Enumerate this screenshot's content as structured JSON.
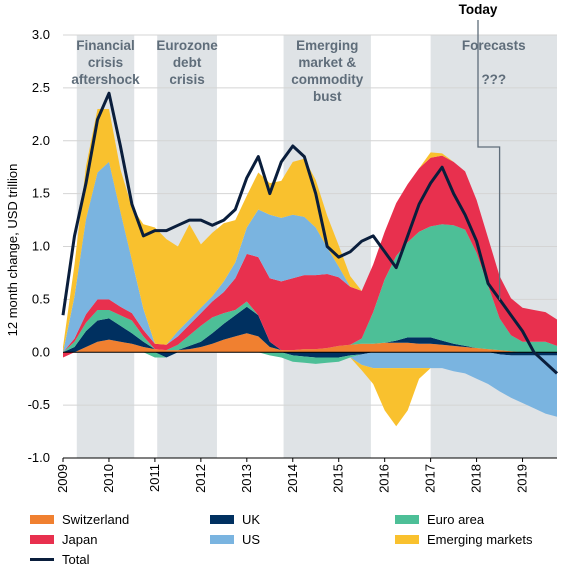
{
  "chart_data": {
    "type": "area",
    "ylabel": "12 month change, USD trillion",
    "ylim": [
      -1.0,
      3.0
    ],
    "yticks": [
      "3.0",
      "2.5",
      "2.0",
      "1.5",
      "1.0",
      "0.5",
      "0.0",
      "-0.5",
      "-1.0"
    ],
    "xlim": [
      2009.0,
      2019.75
    ],
    "xticks": [
      "2009",
      "2010",
      "2011",
      "2012",
      "2013",
      "2014",
      "2015",
      "2016",
      "2017",
      "2018",
      "2019"
    ],
    "grid": "horizontal",
    "legend_position": "bottom",
    "annotation_today": "Today",
    "today_x": 2018.5,
    "shaded_periods": [
      {
        "label": "Financial crisis aftershock",
        "lines": [
          "Financial",
          "crisis",
          "aftershock"
        ],
        "start": 2009.3,
        "end": 2010.55
      },
      {
        "label": "Eurozone debt crisis",
        "lines": [
          "Eurozone",
          "debt",
          "crisis"
        ],
        "start": 2011.05,
        "end": 2012.35
      },
      {
        "label": "Emerging market & commodity bust",
        "lines": [
          "Emerging",
          "market &",
          "commodity",
          "bust"
        ],
        "start": 2013.8,
        "end": 2015.7
      },
      {
        "label": "Forecasts ???",
        "lines": [
          "Forecasts",
          "",
          "???"
        ],
        "start": 2017.0,
        "end": 2019.75
      }
    ],
    "x": [
      2009.0,
      2009.25,
      2009.5,
      2009.75,
      2010.0,
      2010.25,
      2010.5,
      2010.75,
      2011.0,
      2011.25,
      2011.5,
      2011.75,
      2012.0,
      2012.25,
      2012.5,
      2012.75,
      2013.0,
      2013.25,
      2013.5,
      2013.75,
      2014.0,
      2014.25,
      2014.5,
      2014.75,
      2015.0,
      2015.25,
      2015.5,
      2015.75,
      2016.0,
      2016.25,
      2016.5,
      2016.75,
      2017.0,
      2017.25,
      2017.5,
      2017.75,
      2018.0,
      2018.25,
      2018.5,
      2018.75,
      2019.0,
      2019.25,
      2019.5,
      2019.75
    ],
    "series": [
      {
        "name": "Switzerland",
        "color": "#f08030",
        "values": [
          0.0,
          0.0,
          0.05,
          0.1,
          0.12,
          0.1,
          0.08,
          0.05,
          0.03,
          0.02,
          0.02,
          0.03,
          0.05,
          0.08,
          0.12,
          0.15,
          0.18,
          0.15,
          0.05,
          0.02,
          0.02,
          0.03,
          0.03,
          0.04,
          0.06,
          0.07,
          0.08,
          0.08,
          0.09,
          0.09,
          0.09,
          0.08,
          0.08,
          0.07,
          0.06,
          0.05,
          0.04,
          0.03,
          0.02,
          0.01,
          0.0,
          0.0,
          0.0,
          0.0
        ]
      },
      {
        "name": "UK",
        "color": "#003060",
        "values": [
          0.0,
          0.05,
          0.15,
          0.2,
          0.2,
          0.15,
          0.1,
          0.05,
          0.0,
          -0.05,
          0.0,
          0.03,
          0.05,
          0.1,
          0.15,
          0.2,
          0.25,
          0.2,
          0.05,
          0.0,
          -0.03,
          -0.04,
          -0.05,
          -0.05,
          -0.05,
          -0.03,
          -0.02,
          0.0,
          0.0,
          0.02,
          0.05,
          0.06,
          0.06,
          0.04,
          0.02,
          0.01,
          0.0,
          0.0,
          -0.02,
          -0.03,
          -0.03,
          -0.03,
          -0.03,
          -0.03
        ]
      },
      {
        "name": "Euro area",
        "color": "#4dbf97",
        "values": [
          0.0,
          0.05,
          0.08,
          0.1,
          0.08,
          0.1,
          0.12,
          0.05,
          -0.05,
          0.0,
          0.05,
          0.1,
          0.15,
          0.15,
          0.1,
          0.05,
          0.05,
          0.0,
          -0.03,
          -0.05,
          -0.06,
          -0.06,
          -0.06,
          -0.05,
          -0.04,
          -0.02,
          0.05,
          0.3,
          0.6,
          0.8,
          0.9,
          1.0,
          1.05,
          1.1,
          1.12,
          1.1,
          0.9,
          0.6,
          0.3,
          0.15,
          0.1,
          0.1,
          0.1,
          0.06
        ]
      },
      {
        "name": "Japan",
        "color": "#e8304e",
        "values": [
          -0.05,
          0.03,
          0.08,
          0.1,
          0.1,
          0.08,
          0.07,
          0.06,
          0.05,
          0.05,
          0.08,
          0.1,
          0.12,
          0.15,
          0.2,
          0.3,
          0.45,
          0.55,
          0.6,
          0.65,
          0.68,
          0.7,
          0.7,
          0.7,
          0.65,
          0.55,
          0.45,
          0.45,
          0.45,
          0.5,
          0.55,
          0.6,
          0.65,
          0.65,
          0.6,
          0.55,
          0.5,
          0.45,
          0.4,
          0.35,
          0.32,
          0.3,
          0.28,
          0.25
        ]
      },
      {
        "name": "US",
        "color": "#7ab4e0",
        "values": [
          0.0,
          0.4,
          0.9,
          1.2,
          1.3,
          0.9,
          0.5,
          0.2,
          0.0,
          0.0,
          0.05,
          0.05,
          0.05,
          0.05,
          0.1,
          0.15,
          0.25,
          0.45,
          0.6,
          0.6,
          0.6,
          0.55,
          0.45,
          0.25,
          0.1,
          0.0,
          -0.1,
          -0.15,
          -0.15,
          -0.15,
          -0.15,
          -0.15,
          -0.15,
          -0.15,
          -0.18,
          -0.2,
          -0.25,
          -0.3,
          -0.35,
          -0.4,
          -0.45,
          -0.5,
          -0.55,
          -0.58
        ]
      },
      {
        "name": "Emerging markets",
        "color": "#f9c12e",
        "values": [
          0.05,
          0.3,
          0.5,
          0.6,
          0.5,
          0.4,
          0.5,
          0.8,
          1.1,
          1.0,
          0.8,
          0.9,
          0.6,
          0.6,
          0.55,
          0.4,
          0.3,
          0.35,
          0.3,
          0.35,
          0.5,
          0.55,
          0.45,
          0.3,
          0.2,
          0.1,
          -0.05,
          -0.15,
          -0.4,
          -0.55,
          -0.4,
          -0.1,
          0.05,
          0.02,
          0.0,
          0.0,
          0.0,
          0.0,
          0.0,
          0.0,
          0.0,
          0.0,
          0.0,
          0.0
        ]
      },
      {
        "name": "Total",
        "color": "#0a1e3c",
        "line": true,
        "values": [
          0.35,
          1.1,
          1.6,
          2.2,
          2.45,
          1.95,
          1.4,
          1.1,
          1.15,
          1.15,
          1.2,
          1.25,
          1.25,
          1.2,
          1.25,
          1.35,
          1.65,
          1.85,
          1.5,
          1.8,
          1.95,
          1.85,
          1.5,
          1.0,
          0.9,
          0.95,
          1.05,
          1.1,
          0.95,
          0.8,
          1.1,
          1.4,
          1.6,
          1.75,
          1.5,
          1.3,
          1.05,
          0.65,
          0.5,
          0.35,
          0.2,
          0.0,
          -0.1,
          -0.2
        ]
      }
    ]
  }
}
